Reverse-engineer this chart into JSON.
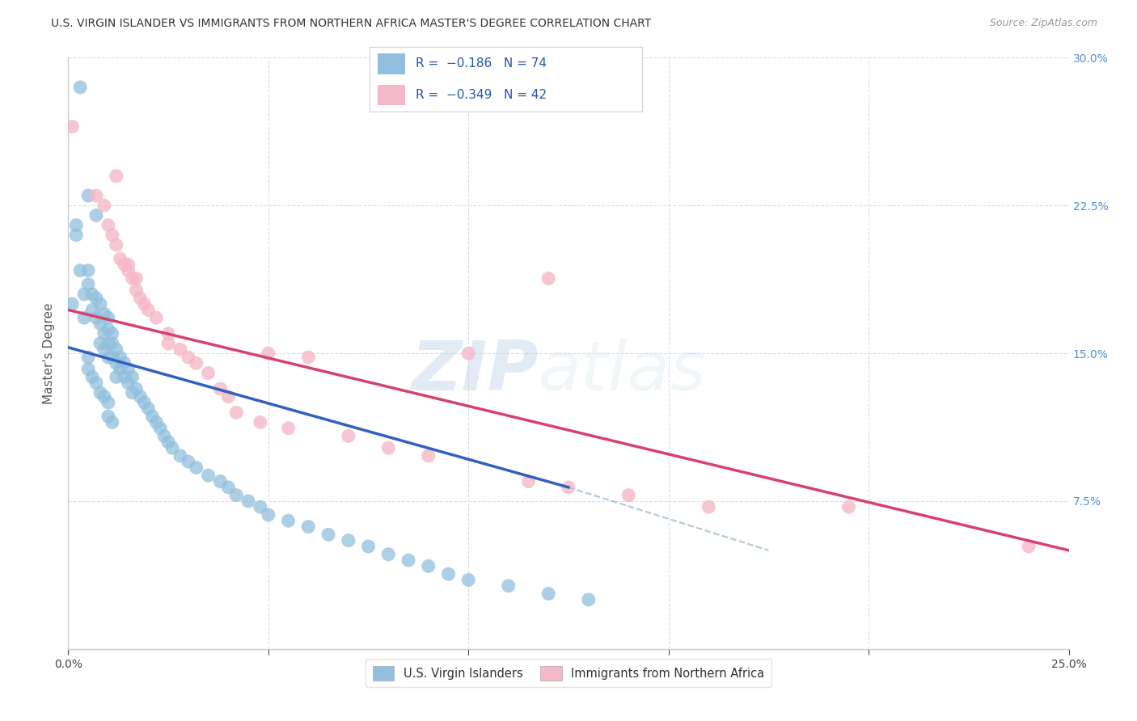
{
  "title": "U.S. VIRGIN ISLANDER VS IMMIGRANTS FROM NORTHERN AFRICA MASTER'S DEGREE CORRELATION CHART",
  "source": "Source: ZipAtlas.com",
  "ylabel": "Master's Degree",
  "xlim": [
    0.0,
    0.25
  ],
  "ylim": [
    0.0,
    0.3
  ],
  "xticks": [
    0.0,
    0.05,
    0.1,
    0.15,
    0.2,
    0.25
  ],
  "yticks": [
    0.0,
    0.075,
    0.15,
    0.225,
    0.3
  ],
  "xtick_labels_show": [
    "0.0%",
    "25.0%"
  ],
  "xtick_labels_pos": [
    0.0,
    0.25
  ],
  "ytick_labels": [
    "",
    "7.5%",
    "15.0%",
    "22.5%",
    "30.0%"
  ],
  "legend_label1": "U.S. Virgin Islanders",
  "legend_label2": "Immigrants from Northern Africa",
  "color_blue": "#92bfdd",
  "color_pink": "#f5b8c8",
  "color_blue_line": "#3060c0",
  "color_pink_line": "#d84070",
  "color_dashed": "#b0c8d8",
  "watermark_zip": "ZIP",
  "watermark_atlas": "atlas",
  "grid_color": "#d8dde2",
  "background_color": "#ffffff",
  "blue_scatter_x": [
    0.003,
    0.005,
    0.007,
    0.001,
    0.002,
    0.002,
    0.003,
    0.004,
    0.004,
    0.005,
    0.005,
    0.006,
    0.006,
    0.007,
    0.007,
    0.008,
    0.008,
    0.008,
    0.009,
    0.009,
    0.009,
    0.01,
    0.01,
    0.01,
    0.01,
    0.011,
    0.011,
    0.011,
    0.012,
    0.012,
    0.012,
    0.013,
    0.013,
    0.014,
    0.014,
    0.015,
    0.015,
    0.016,
    0.016,
    0.017,
    0.018,
    0.019,
    0.02,
    0.021,
    0.022,
    0.023,
    0.024,
    0.025,
    0.026,
    0.028,
    0.03,
    0.032,
    0.035,
    0.038,
    0.04,
    0.042,
    0.045,
    0.048,
    0.05,
    0.055,
    0.06,
    0.065,
    0.07,
    0.075,
    0.08,
    0.085,
    0.09,
    0.095,
    0.1,
    0.11,
    0.12,
    0.13,
    0.005,
    0.005,
    0.006,
    0.007,
    0.008,
    0.009,
    0.01,
    0.01,
    0.011
  ],
  "blue_scatter_y": [
    0.285,
    0.23,
    0.22,
    0.175,
    0.215,
    0.21,
    0.192,
    0.18,
    0.168,
    0.192,
    0.185,
    0.18,
    0.172,
    0.178,
    0.168,
    0.175,
    0.165,
    0.155,
    0.17,
    0.16,
    0.152,
    0.168,
    0.162,
    0.155,
    0.148,
    0.16,
    0.155,
    0.148,
    0.152,
    0.145,
    0.138,
    0.148,
    0.142,
    0.145,
    0.138,
    0.142,
    0.135,
    0.138,
    0.13,
    0.132,
    0.128,
    0.125,
    0.122,
    0.118,
    0.115,
    0.112,
    0.108,
    0.105,
    0.102,
    0.098,
    0.095,
    0.092,
    0.088,
    0.085,
    0.082,
    0.078,
    0.075,
    0.072,
    0.068,
    0.065,
    0.062,
    0.058,
    0.055,
    0.052,
    0.048,
    0.045,
    0.042,
    0.038,
    0.035,
    0.032,
    0.028,
    0.025,
    0.148,
    0.142,
    0.138,
    0.135,
    0.13,
    0.128,
    0.125,
    0.118,
    0.115
  ],
  "pink_scatter_x": [
    0.001,
    0.012,
    0.007,
    0.009,
    0.01,
    0.011,
    0.012,
    0.013,
    0.014,
    0.015,
    0.016,
    0.017,
    0.018,
    0.019,
    0.015,
    0.017,
    0.02,
    0.022,
    0.025,
    0.025,
    0.028,
    0.03,
    0.032,
    0.035,
    0.038,
    0.04,
    0.042,
    0.048,
    0.05,
    0.055,
    0.06,
    0.07,
    0.08,
    0.09,
    0.1,
    0.115,
    0.12,
    0.125,
    0.14,
    0.16,
    0.195,
    0.24
  ],
  "pink_scatter_y": [
    0.265,
    0.24,
    0.23,
    0.225,
    0.215,
    0.21,
    0.205,
    0.198,
    0.195,
    0.192,
    0.188,
    0.182,
    0.178,
    0.175,
    0.195,
    0.188,
    0.172,
    0.168,
    0.16,
    0.155,
    0.152,
    0.148,
    0.145,
    0.14,
    0.132,
    0.128,
    0.12,
    0.115,
    0.15,
    0.112,
    0.148,
    0.108,
    0.102,
    0.098,
    0.15,
    0.085,
    0.188,
    0.082,
    0.078,
    0.072,
    0.072,
    0.052
  ],
  "blue_line_x": [
    0.0,
    0.125
  ],
  "blue_line_y": [
    0.153,
    0.082
  ],
  "pink_line_x": [
    0.0,
    0.25
  ],
  "pink_line_y": [
    0.172,
    0.05
  ],
  "dashed_line_x": [
    0.125,
    0.175
  ],
  "dashed_line_y": [
    0.082,
    0.05
  ]
}
